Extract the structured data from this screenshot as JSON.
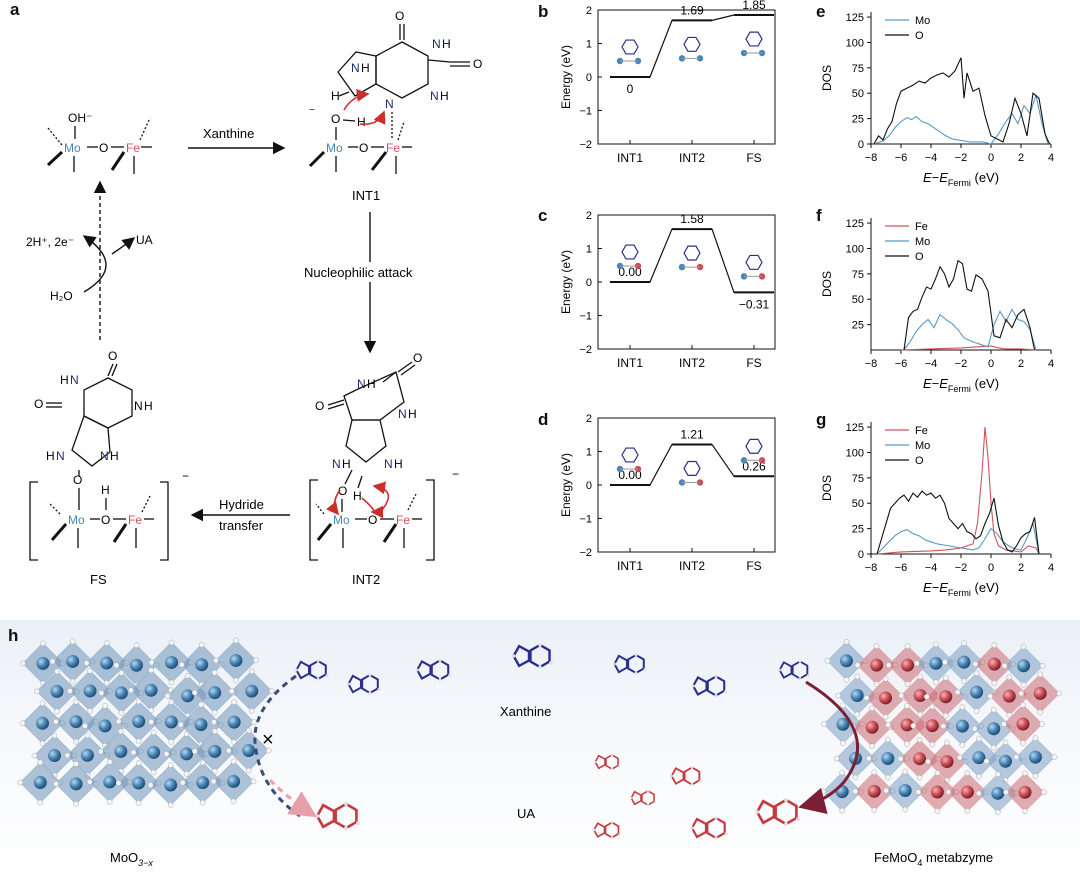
{
  "colors": {
    "mo": "#4a86b5",
    "fe": "#d0525b",
    "o": "#111111",
    "arrow_red": "#c9302c",
    "bond_blue": "#2a2f8c"
  },
  "panel_a": {
    "label": "a",
    "step1": "Xanthine",
    "step2": "Nucleophilic attack",
    "step3_line1": "Hydride",
    "step3_line2": "transfer",
    "cycle_left": "2H⁺, 2e⁻",
    "cycle_right": "UA",
    "cycle_in": "H₂O",
    "int1": "INT1",
    "int2": "INT2",
    "fs": "FS",
    "mo": "Mo",
    "fe": "Fe",
    "oh_minus": "OH⁻",
    "charge": "−"
  },
  "chart_data": [
    {
      "panel": "b",
      "type": "line",
      "ylabel": "Energy (eV)",
      "ylim": [
        -2,
        2
      ],
      "yticks": [
        "2",
        "1",
        "0",
        "−1",
        "−2"
      ],
      "categories": [
        "INT1",
        "INT2",
        "FS"
      ],
      "values": [
        0,
        1.69,
        1.85
      ],
      "labels": [
        "0",
        "1.69",
        "1.85"
      ]
    },
    {
      "panel": "c",
      "type": "line",
      "ylabel": "Energy (eV)",
      "ylim": [
        -2,
        2
      ],
      "yticks": [
        "2",
        "1",
        "0",
        "−1",
        "−2"
      ],
      "categories": [
        "INT1",
        "INT2",
        "FS"
      ],
      "values": [
        0.0,
        1.58,
        -0.31
      ],
      "labels": [
        "0.00",
        "1.58",
        "−0.31"
      ]
    },
    {
      "panel": "d",
      "type": "line",
      "ylabel": "Energy (eV)",
      "ylim": [
        -2,
        2
      ],
      "yticks": [
        "2",
        "1",
        "0",
        "−1",
        "−2"
      ],
      "categories": [
        "INT1",
        "INT2",
        "FS"
      ],
      "values": [
        0.0,
        1.21,
        0.26
      ],
      "labels": [
        "0.00",
        "1.21",
        "0.26"
      ]
    },
    {
      "panel": "e",
      "type": "line",
      "ylabel": "DOS",
      "xlim": [
        -8,
        4
      ],
      "ylim": [
        0,
        130
      ],
      "yticks": [
        "125",
        "100",
        "75",
        "50",
        "25",
        "0"
      ],
      "xticks": [
        "−8",
        "−6",
        "−4",
        "−2",
        "0",
        "2",
        "4"
      ],
      "legend": [
        "Mo",
        "O"
      ],
      "series": [
        {
          "name": "Mo",
          "x": [
            -7.8,
            -7.2,
            -6.8,
            -6.4,
            -6.0,
            -5.6,
            -5.3,
            -5.0,
            -4.6,
            -4.2,
            -3.8,
            -3.4,
            -3.0,
            -2.6,
            -2.2,
            -1.8,
            -1.4,
            -1.0,
            -0.5,
            0,
            0.5,
            1.0,
            1.4,
            1.8,
            2.2,
            2.6,
            3.0,
            3.4,
            3.8
          ],
          "y": [
            0,
            3,
            8,
            16,
            22,
            26,
            24,
            27,
            22,
            20,
            16,
            12,
            8,
            5,
            4,
            3,
            2,
            2,
            2,
            0,
            10,
            22,
            30,
            20,
            38,
            30,
            48,
            20,
            0
          ]
        },
        {
          "name": "O",
          "x": [
            -7.8,
            -7.5,
            -7.2,
            -6.9,
            -6.6,
            -6.3,
            -6.0,
            -5.6,
            -5.2,
            -4.8,
            -4.4,
            -4.0,
            -3.6,
            -3.2,
            -2.8,
            -2.4,
            -2.0,
            -1.8,
            -1.6,
            -1.2,
            -0.8,
            -0.4,
            0,
            0.4,
            0.8,
            1.2,
            1.6,
            2.0,
            2.4,
            2.8,
            3.2,
            3.6,
            3.9
          ],
          "y": [
            0,
            8,
            4,
            15,
            22,
            40,
            52,
            55,
            58,
            62,
            60,
            65,
            68,
            70,
            66,
            72,
            85,
            45,
            70,
            52,
            55,
            28,
            8,
            5,
            2,
            20,
            45,
            30,
            8,
            50,
            45,
            10,
            0
          ]
        }
      ]
    },
    {
      "panel": "f",
      "type": "line",
      "ylabel": "DOS",
      "xlim": [
        -8,
        4
      ],
      "ylim": [
        0,
        130
      ],
      "yticks": [
        "125",
        "100",
        "75",
        "50",
        "25"
      ],
      "xticks": [
        "−8",
        "−6",
        "−4",
        "−2",
        "0",
        "2",
        "4"
      ],
      "legend": [
        "Fe",
        "Mo",
        "O"
      ],
      "series": [
        {
          "name": "Fe",
          "x": [
            -6,
            -4,
            -2,
            -1,
            0,
            0.5,
            1,
            2,
            3
          ],
          "y": [
            0,
            1,
            2,
            3,
            4,
            2,
            1,
            1,
            0
          ]
        },
        {
          "name": "Mo",
          "x": [
            -5.8,
            -5.4,
            -5.0,
            -4.6,
            -4.2,
            -3.8,
            -3.4,
            -3.0,
            -2.6,
            -2.2,
            -1.8,
            -1.2,
            -0.6,
            -0.2,
            0.2,
            0.6,
            1.0,
            1.4,
            1.8,
            2.2,
            2.6,
            3.0
          ],
          "y": [
            0,
            8,
            18,
            25,
            30,
            22,
            35,
            30,
            26,
            20,
            12,
            8,
            5,
            3,
            25,
            38,
            28,
            40,
            30,
            28,
            20,
            0
          ]
        },
        {
          "name": "O",
          "x": [
            -5.8,
            -5.5,
            -5.2,
            -4.9,
            -4.6,
            -4.3,
            -4.0,
            -3.7,
            -3.4,
            -3.1,
            -2.8,
            -2.5,
            -2.2,
            -1.9,
            -1.6,
            -1.3,
            -1.0,
            -0.6,
            -0.2,
            0.2,
            0.6,
            1.0,
            1.4,
            1.8,
            2.2,
            2.6,
            2.9
          ],
          "y": [
            0,
            32,
            38,
            40,
            52,
            62,
            60,
            70,
            82,
            75,
            62,
            70,
            88,
            85,
            60,
            58,
            74,
            70,
            58,
            14,
            12,
            30,
            22,
            35,
            40,
            22,
            0
          ]
        }
      ]
    },
    {
      "panel": "g",
      "type": "line",
      "ylabel": "DOS",
      "xlim": [
        -8,
        4
      ],
      "ylim": [
        0,
        130
      ],
      "yticks": [
        "125",
        "100",
        "75",
        "50",
        "25",
        "0"
      ],
      "xticks": [
        "−8",
        "−6",
        "−4",
        "−2",
        "0",
        "2",
        "4"
      ],
      "legend": [
        "Fe",
        "Mo",
        "O"
      ],
      "series": [
        {
          "name": "Fe",
          "x": [
            -7.6,
            -6,
            -4,
            -3,
            -2,
            -1.2,
            -0.9,
            -0.6,
            -0.4,
            -0.2,
            0,
            0.2,
            0.5,
            1,
            1.5,
            2,
            2.5,
            3,
            3.2
          ],
          "y": [
            0,
            2,
            3,
            4,
            6,
            10,
            30,
            80,
            125,
            95,
            50,
            20,
            8,
            4,
            3,
            2,
            8,
            6,
            0
          ]
        },
        {
          "name": "Mo",
          "x": [
            -7.6,
            -7.2,
            -6.8,
            -6.4,
            -6.0,
            -5.6,
            -5.2,
            -4.8,
            -4.4,
            -4.0,
            -3.6,
            -3.2,
            -2.8,
            -2.4,
            -2.0,
            -1.6,
            -1.2,
            -0.8,
            -0.4,
            0,
            0.4,
            0.8,
            1.2,
            1.6,
            2.0,
            2.4,
            2.8,
            3.2
          ],
          "y": [
            0,
            6,
            12,
            18,
            22,
            24,
            20,
            18,
            14,
            12,
            10,
            9,
            8,
            7,
            6,
            5,
            4,
            6,
            15,
            25,
            20,
            12,
            8,
            5,
            4,
            16,
            30,
            0
          ]
        },
        {
          "name": "O",
          "x": [
            -7.6,
            -7.3,
            -7.0,
            -6.7,
            -6.4,
            -6.1,
            -5.8,
            -5.5,
            -5.2,
            -4.9,
            -4.6,
            -4.3,
            -4.0,
            -3.7,
            -3.4,
            -3.1,
            -2.8,
            -2.5,
            -2.2,
            -1.9,
            -1.6,
            -1.3,
            -1.0,
            -0.7,
            -0.4,
            -0.1,
            0.2,
            0.5,
            0.8,
            1.1,
            1.4,
            1.7,
            2.0,
            2.3,
            2.6,
            2.9,
            3.2
          ],
          "y": [
            0,
            15,
            30,
            45,
            50,
            55,
            58,
            52,
            60,
            56,
            62,
            58,
            60,
            55,
            58,
            50,
            35,
            30,
            25,
            30,
            22,
            20,
            15,
            18,
            30,
            40,
            55,
            28,
            12,
            4,
            2,
            8,
            16,
            20,
            22,
            36,
            0
          ]
        }
      ]
    }
  ],
  "panel_h": {
    "label": "h",
    "xanthine": "Xanthine",
    "ua": "UA",
    "left_name": "MoO",
    "left_sub": "3−x",
    "right_name": "FeMoO",
    "right_sub": "4",
    "right_suffix": " metabzyme",
    "cross": "×"
  }
}
